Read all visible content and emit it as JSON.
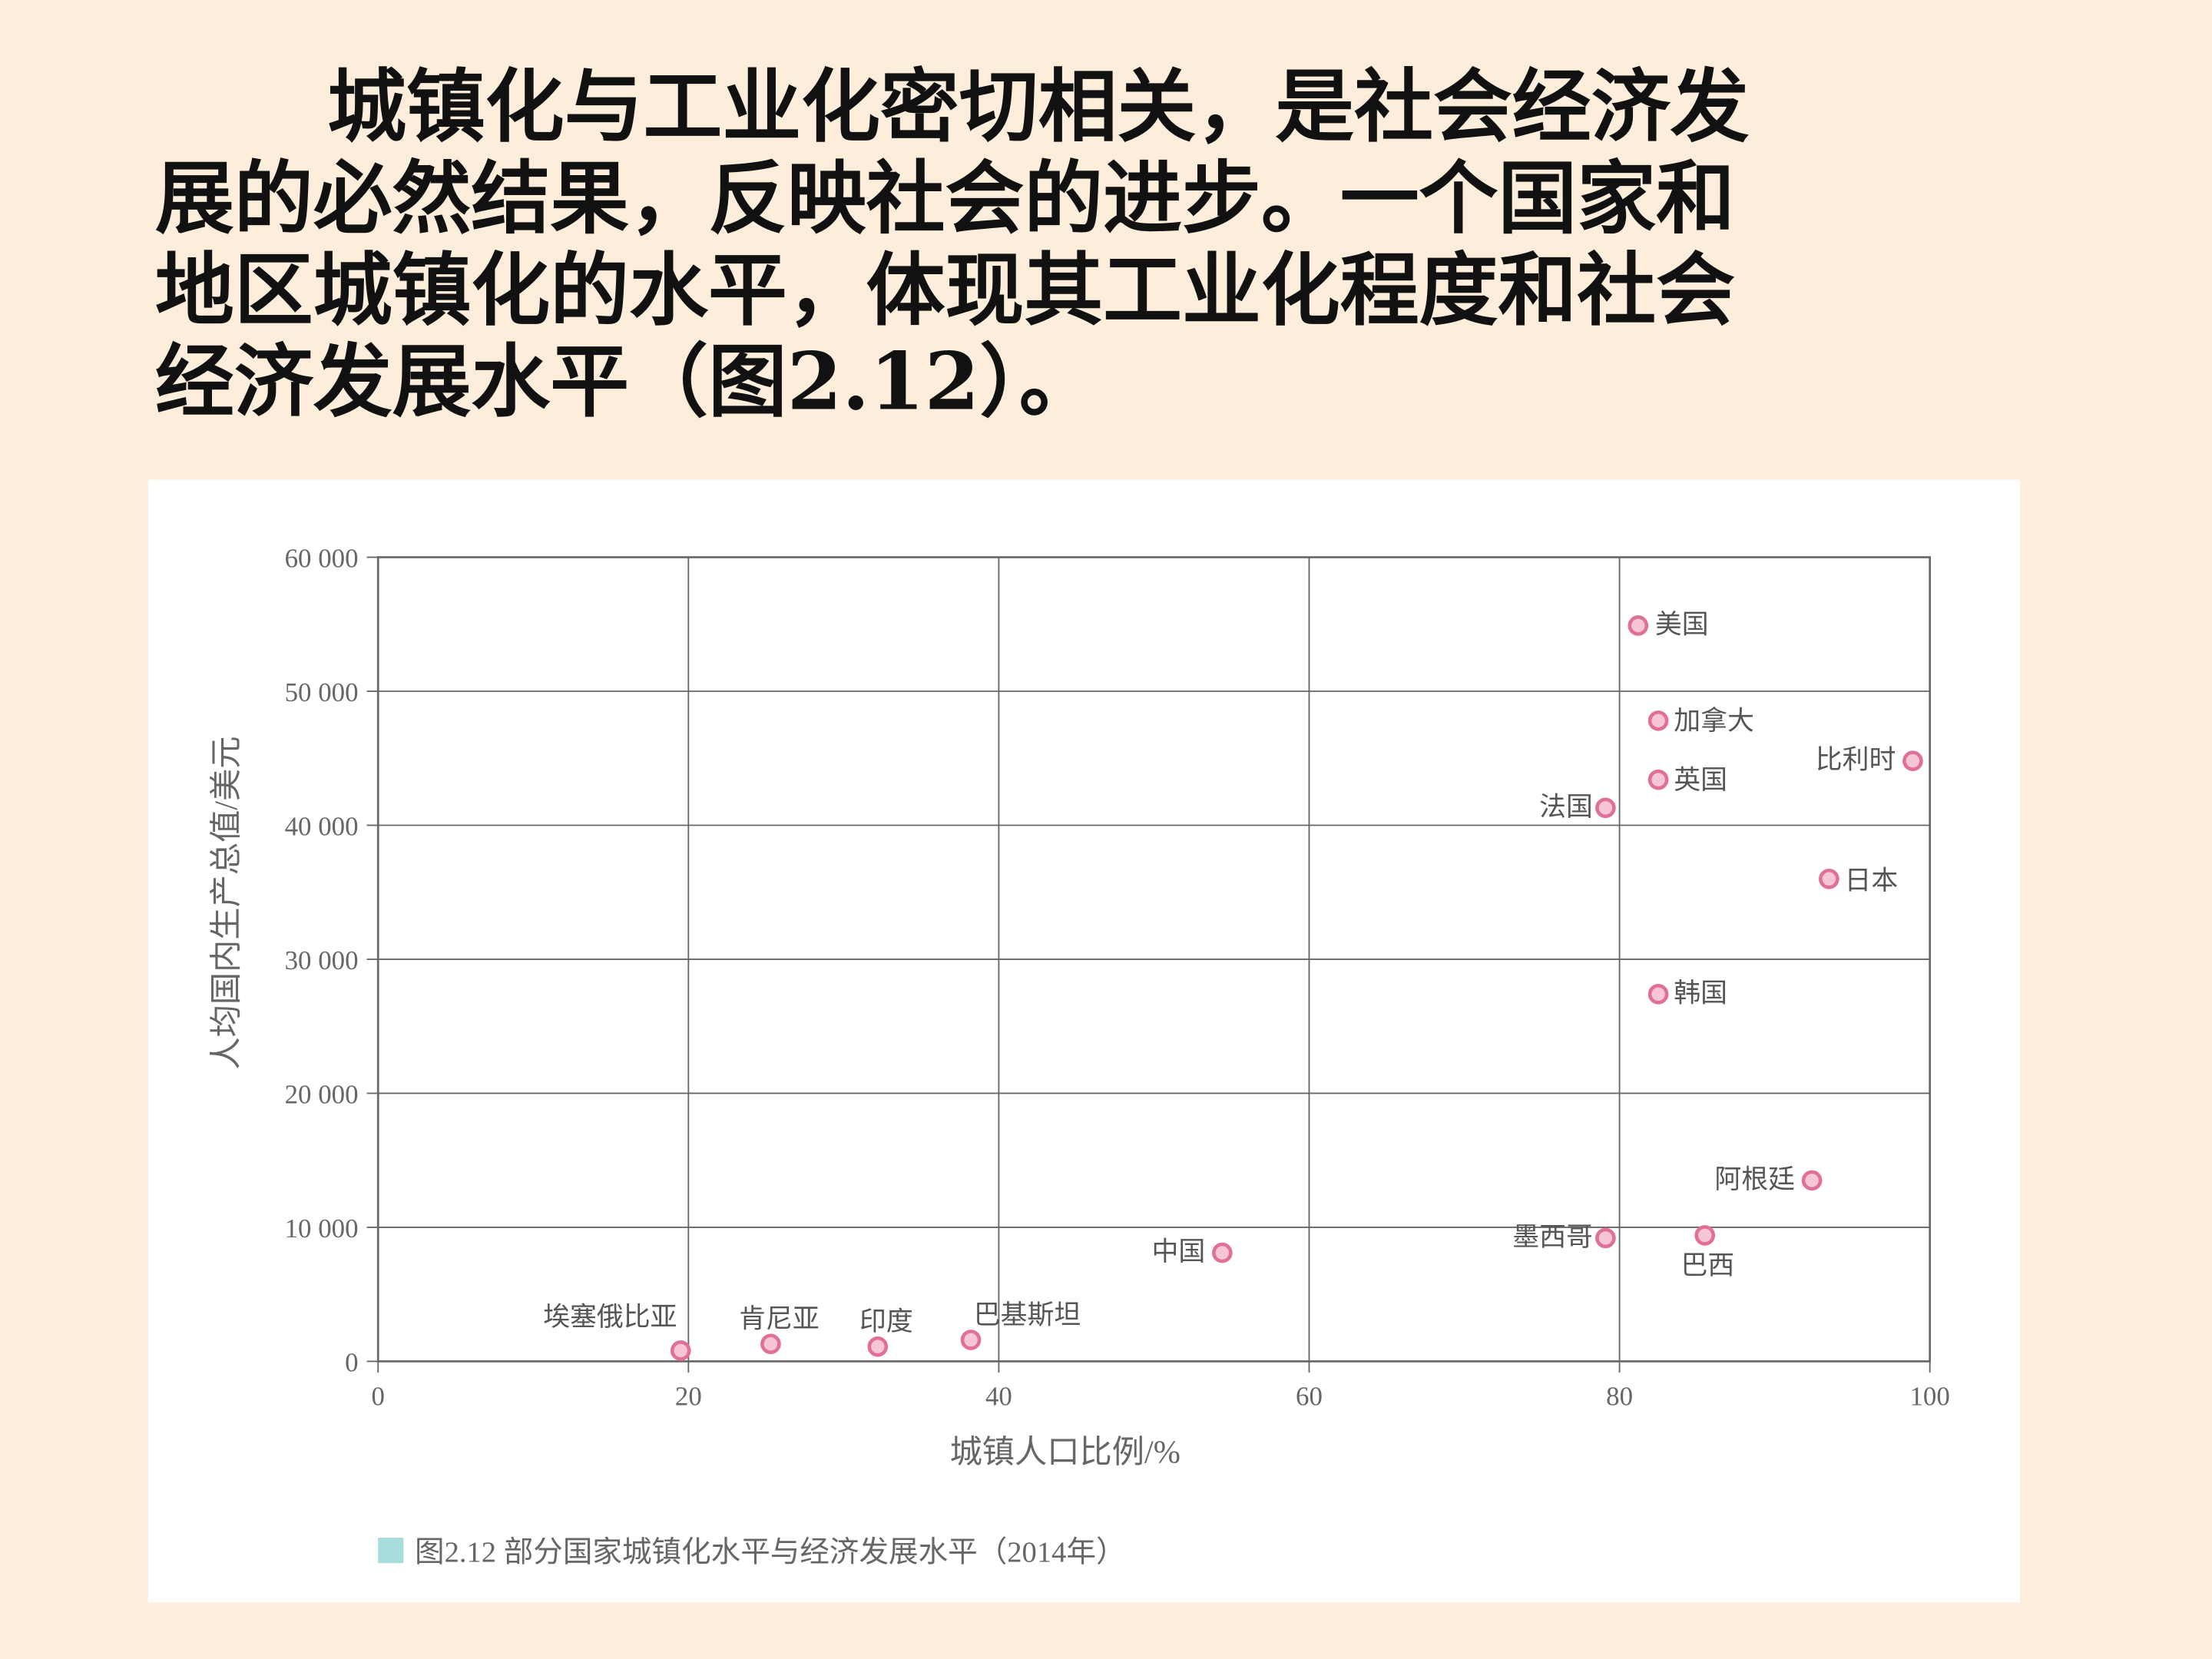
{
  "paragraph": [
    "城镇化与工业化密切相关，是社会经济发",
    "展的必然结果，反映社会的进步。一个国家和",
    "地区城镇化的水平，体现其工业化程度和社会",
    "经济发展水平（图2.12）。"
  ],
  "chart_data": {
    "type": "scatter",
    "title": "图2.12  部分国家城镇化水平与经济发展水平（2014年）",
    "x_label": "城镇人口比例/%",
    "y_label": "人均国内生产总值/美元",
    "point_labels": [
      "埃塞俄比亚",
      "肯尼亚",
      "印度",
      "巴基斯坦",
      "中国",
      "墨西哥",
      "巴西",
      "阿根廷",
      "韩国",
      "日本",
      "法国",
      "英国",
      "比利时",
      "加拿大",
      "美国"
    ],
    "x": [
      19.5,
      25.3,
      32.2,
      38.2,
      54.4,
      79.1,
      85.5,
      92.4,
      82.5,
      93.5,
      79.1,
      82.5,
      98.9,
      82.5,
      81.2
    ],
    "values": [
      800,
      1300,
      1100,
      1600,
      8100,
      9200,
      9400,
      13500,
      27400,
      36000,
      41300,
      43400,
      44800,
      47800,
      54900
    ],
    "color": "#e0709a",
    "xlim": [
      0,
      100
    ],
    "xticks": [
      0,
      20,
      40,
      60,
      80,
      100
    ],
    "ylim": [
      0,
      60000
    ],
    "yticks": [
      0,
      {
        "value": 10000,
        "label": "10 000"
      },
      {
        "value": 20000,
        "label": "20 000"
      },
      {
        "value": 30000,
        "label": "30 000"
      },
      {
        "value": 40000,
        "label": "40 000"
      },
      {
        "value": 50000,
        "label": "50 000"
      },
      {
        "value": 60000,
        "label": "60 000"
      }
    ],
    "grid": true
  }
}
